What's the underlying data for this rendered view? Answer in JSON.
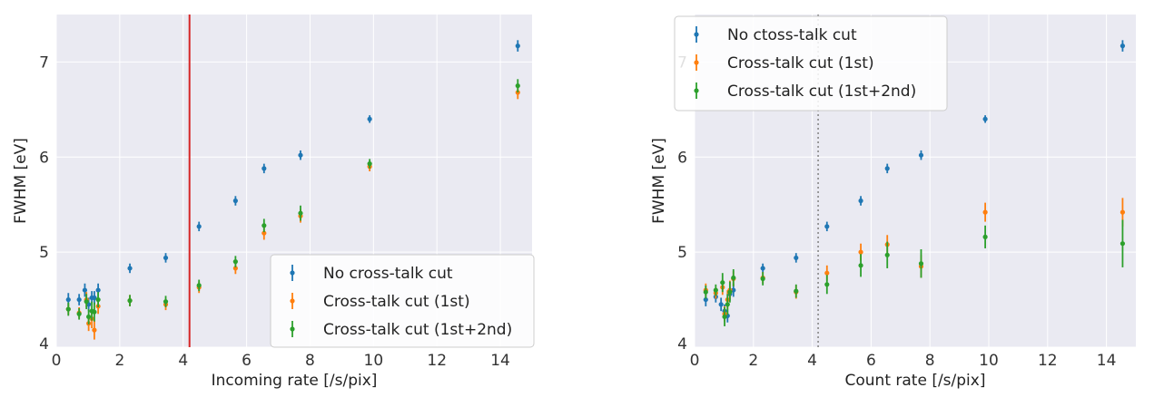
{
  "colors": {
    "plot_bg": "#eaeaf2",
    "grid": "#ffffff",
    "blue": "#1f77b4",
    "orange": "#ff7f0e",
    "green": "#2ca02c",
    "red_line": "#d62728",
    "gray_line": "#888888"
  },
  "chart_data": [
    {
      "type": "scatter",
      "xlabel": "Incoming rate [/s/pix]",
      "ylabel": "FWHM [eV]",
      "xlim": [
        0,
        15
      ],
      "ylim": [
        4,
        7.5
      ],
      "xticks": [
        0,
        2,
        4,
        6,
        8,
        10,
        12,
        14
      ],
      "yticks": [
        4,
        5,
        6,
        7
      ],
      "legend_loc": "lower-right",
      "vline": {
        "x": 4.2,
        "style": "solid",
        "color": "#d62728"
      },
      "series": [
        {
          "name": "No cross-talk cut",
          "color": "#1f77b4",
          "points": [
            [
              0.38,
              4.5,
              0.07
            ],
            [
              0.72,
              4.5,
              0.06
            ],
            [
              0.9,
              4.6,
              0.07
            ],
            [
              1.02,
              4.45,
              0.07
            ],
            [
              1.12,
              4.52,
              0.07
            ],
            [
              1.2,
              4.52,
              0.07
            ],
            [
              1.32,
              4.6,
              0.07
            ],
            [
              2.32,
              4.83,
              0.05
            ],
            [
              3.45,
              4.94,
              0.05
            ],
            [
              4.5,
              5.27,
              0.05
            ],
            [
              5.65,
              5.54,
              0.05
            ],
            [
              6.55,
              5.88,
              0.05
            ],
            [
              7.7,
              6.02,
              0.05
            ],
            [
              9.88,
              6.4,
              0.04
            ],
            [
              14.55,
              7.17,
              0.06
            ]
          ]
        },
        {
          "name": "Cross-talk cut (1st)",
          "color": "#ff7f0e",
          "points": [
            [
              0.38,
              4.4,
              0.06
            ],
            [
              0.72,
              4.36,
              0.06
            ],
            [
              0.95,
              4.5,
              0.08
            ],
            [
              1.02,
              4.25,
              0.08
            ],
            [
              1.12,
              4.3,
              0.1
            ],
            [
              1.2,
              4.18,
              0.1
            ],
            [
              1.32,
              4.43,
              0.08
            ],
            [
              2.32,
              4.49,
              0.06
            ],
            [
              3.45,
              4.45,
              0.06
            ],
            [
              4.5,
              4.63,
              0.06
            ],
            [
              5.65,
              4.83,
              0.06
            ],
            [
              6.55,
              5.2,
              0.07
            ],
            [
              7.7,
              5.38,
              0.07
            ],
            [
              9.88,
              5.9,
              0.05
            ],
            [
              14.55,
              6.68,
              0.07
            ]
          ]
        },
        {
          "name": "Cross-talk cut (1st+2nd)",
          "color": "#2ca02c",
          "points": [
            [
              0.38,
              4.4,
              0.07
            ],
            [
              0.72,
              4.35,
              0.06
            ],
            [
              0.95,
              4.48,
              0.08
            ],
            [
              1.02,
              4.32,
              0.08
            ],
            [
              1.12,
              4.38,
              0.1
            ],
            [
              1.2,
              4.37,
              0.1
            ],
            [
              1.32,
              4.5,
              0.08
            ],
            [
              2.32,
              4.49,
              0.06
            ],
            [
              3.45,
              4.48,
              0.06
            ],
            [
              4.5,
              4.65,
              0.06
            ],
            [
              5.65,
              4.9,
              0.06
            ],
            [
              6.55,
              5.28,
              0.07
            ],
            [
              7.7,
              5.41,
              0.08
            ],
            [
              9.88,
              5.93,
              0.05
            ],
            [
              14.55,
              6.75,
              0.07
            ]
          ]
        }
      ]
    },
    {
      "type": "scatter",
      "xlabel": "Count rate [/s/pix]",
      "ylabel": "FWHM [eV]",
      "xlim": [
        0,
        15
      ],
      "ylim": [
        4,
        7.5
      ],
      "xticks": [
        0,
        2,
        4,
        6,
        8,
        10,
        12,
        14
      ],
      "yticks": [
        4,
        5,
        6,
        7
      ],
      "legend_loc": "upper-left",
      "vline": {
        "x": 4.2,
        "style": "dotted",
        "color": "#888888"
      },
      "series": [
        {
          "name": "No ctoss-talk cut",
          "color": "#1f77b4",
          "points": [
            [
              0.38,
              4.5,
              0.07
            ],
            [
              0.72,
              4.53,
              0.06
            ],
            [
              0.9,
              4.45,
              0.07
            ],
            [
              1.02,
              4.38,
              0.07
            ],
            [
              1.12,
              4.33,
              0.07
            ],
            [
              1.2,
              4.56,
              0.07
            ],
            [
              1.32,
              4.6,
              0.07
            ],
            [
              2.32,
              4.83,
              0.05
            ],
            [
              3.45,
              4.94,
              0.05
            ],
            [
              4.5,
              5.27,
              0.05
            ],
            [
              5.65,
              5.54,
              0.05
            ],
            [
              6.55,
              5.88,
              0.05
            ],
            [
              7.7,
              6.02,
              0.05
            ],
            [
              9.88,
              6.4,
              0.04
            ],
            [
              14.55,
              7.17,
              0.06
            ]
          ]
        },
        {
          "name": "Cross-talk cut (1st)",
          "color": "#ff7f0e",
          "points": [
            [
              0.38,
              4.6,
              0.07
            ],
            [
              0.72,
              4.57,
              0.06
            ],
            [
              0.95,
              4.63,
              0.08
            ],
            [
              1.02,
              4.35,
              0.08
            ],
            [
              1.12,
              4.5,
              0.1
            ],
            [
              1.2,
              4.6,
              0.1
            ],
            [
              1.32,
              4.72,
              0.08
            ],
            [
              2.32,
              4.73,
              0.06
            ],
            [
              3.45,
              4.58,
              0.07
            ],
            [
              4.5,
              4.78,
              0.08
            ],
            [
              5.65,
              5.0,
              0.09
            ],
            [
              6.55,
              5.08,
              0.1
            ],
            [
              7.7,
              4.85,
              0.12
            ],
            [
              9.88,
              5.42,
              0.1
            ],
            [
              14.55,
              5.42,
              0.15
            ]
          ]
        },
        {
          "name": "Cross-talk cut (1st+2nd)",
          "color": "#2ca02c",
          "points": [
            [
              0.38,
              4.58,
              0.07
            ],
            [
              0.72,
              4.6,
              0.06
            ],
            [
              0.95,
              4.68,
              0.1
            ],
            [
              1.02,
              4.32,
              0.1
            ],
            [
              1.12,
              4.45,
              0.11
            ],
            [
              1.2,
              4.58,
              0.11
            ],
            [
              1.32,
              4.73,
              0.09
            ],
            [
              2.32,
              4.72,
              0.07
            ],
            [
              3.45,
              4.59,
              0.07
            ],
            [
              4.5,
              4.66,
              0.1
            ],
            [
              5.65,
              4.86,
              0.12
            ],
            [
              6.55,
              4.97,
              0.14
            ],
            [
              7.7,
              4.88,
              0.15
            ],
            [
              9.88,
              5.16,
              0.12
            ],
            [
              14.55,
              5.09,
              0.25
            ]
          ]
        }
      ]
    }
  ]
}
